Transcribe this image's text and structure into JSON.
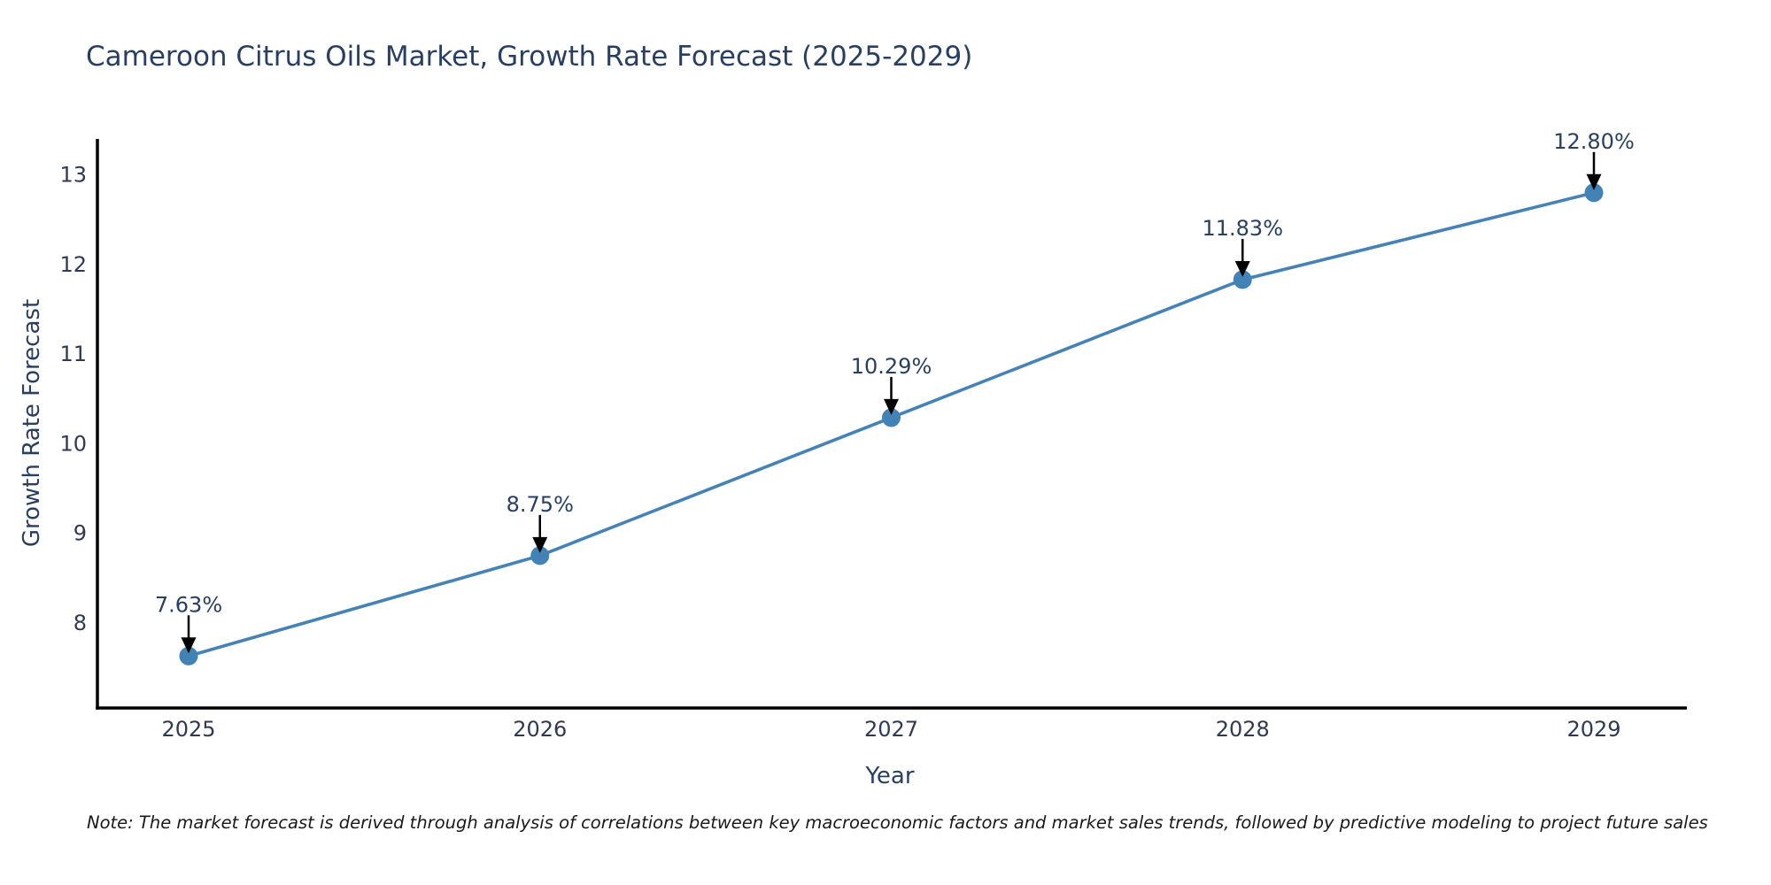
{
  "chart": {
    "title": "Cameroon Citrus Oils Market, Growth Rate Forecast (2025-2029)",
    "xlabel": "Year",
    "ylabel": "Growth Rate Forecast",
    "note": "Note: The market forecast is derived through analysis of correlations between key macroeconomic factors and market sales trends, followed by predictive modeling to project future sales"
  },
  "chart_data": {
    "type": "line",
    "title": "Cameroon Citrus Oils Market, Growth Rate Forecast (2025-2029)",
    "xlabel": "Year",
    "ylabel": "Growth Rate Forecast",
    "x": [
      2025,
      2026,
      2027,
      2028,
      2029
    ],
    "values": [
      7.63,
      8.75,
      10.29,
      11.83,
      12.8
    ],
    "point_labels": [
      "7.63%",
      "8.75%",
      "10.29%",
      "11.83%",
      "12.80%"
    ],
    "yticks": [
      8,
      9,
      10,
      11,
      12,
      13
    ],
    "ylim": [
      7.05,
      13.4
    ],
    "grid": false,
    "legend": false,
    "annotation_style": "down-arrow-to-point",
    "colors": {
      "line": "#4682b4",
      "marker": "#4282b4",
      "axis": "#000000",
      "tick_text": "#2f3a52",
      "annotation_text": "#2a3f5f",
      "arrow": "#000000",
      "title_text": "#2a3f5f",
      "background": "#ffffff"
    }
  }
}
